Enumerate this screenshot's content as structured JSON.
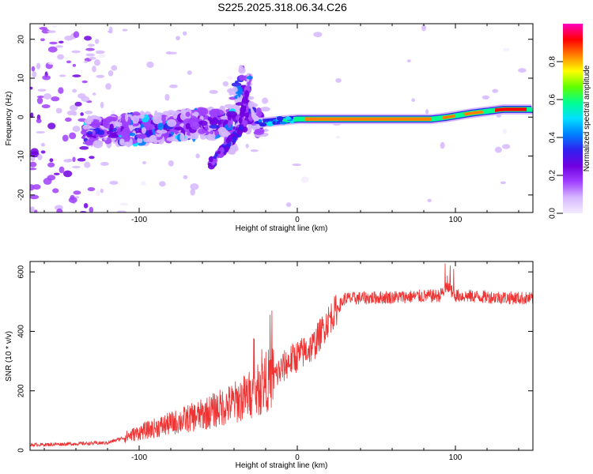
{
  "chart_data": [
    {
      "type": "heatmap",
      "title": "S225.2025.318.06.34.C26",
      "xlabel": "Height of straight line (km)",
      "ylabel": "Frequency (Hz)",
      "xlim": [
        -169,
        149
      ],
      "ylim": [
        -24.5,
        24
      ],
      "xticks": [
        -100,
        0,
        100
      ],
      "xtick_labels": [
        "-100",
        "0",
        "100"
      ],
      "yticks": [
        -20,
        -10,
        0,
        10,
        20
      ],
      "ytick_labels": [
        "-20",
        "-10",
        "0",
        "10",
        "20"
      ],
      "colorbar": {
        "label": "Normalized spectral amplitude",
        "range": [
          0,
          1
        ],
        "ticks": [
          0.0,
          0.2,
          0.4,
          0.6,
          0.8
        ],
        "tick_labels": [
          "0.0",
          "0.2",
          "0.4",
          "0.6",
          "0.8"
        ],
        "colors": [
          "#f4ecff",
          "#d6b8ff",
          "#a040ff",
          "#7000e0",
          "#3020f0",
          "#0080ff",
          "#00e0ff",
          "#00ff90",
          "#60ff00",
          "#ffff00",
          "#ff8000",
          "#ff0000",
          "#ff00c0"
        ]
      },
      "ridge": {
        "description_points_x": [
          -130,
          -100,
          -70,
          -40,
          -35,
          -25,
          0,
          20,
          60,
          85,
          95,
          110,
          130,
          148
        ],
        "description_points_y": [
          -4,
          -3,
          -2,
          -1,
          6,
          -1.5,
          -0.5,
          -0.5,
          -0.5,
          -0.5,
          0,
          1,
          2,
          2
        ]
      }
    },
    {
      "type": "line",
      "title": "",
      "xlabel": "Height of straight line (km)",
      "ylabel": "SNR (10 * v/v)",
      "xlim": [
        -169,
        149
      ],
      "ylim": [
        0,
        635
      ],
      "xticks": [
        -100,
        0,
        100
      ],
      "xtick_labels": [
        "-100",
        "0",
        "100"
      ],
      "yticks": [
        0,
        200,
        400,
        600
      ],
      "ytick_labels": [
        "0",
        "200",
        "400",
        "600"
      ],
      "series": [
        {
          "name": "SNR",
          "color": "#ee3333",
          "trend_x": [
            -169,
            -120,
            -100,
            -60,
            -40,
            -25,
            -20,
            -14,
            -5,
            10,
            20,
            30,
            90,
            95,
            100,
            149
          ],
          "trend_y": [
            18,
            25,
            60,
            120,
            160,
            200,
            230,
            250,
            300,
            350,
            440,
            510,
            520,
            550,
            520,
            510
          ]
        }
      ]
    }
  ]
}
